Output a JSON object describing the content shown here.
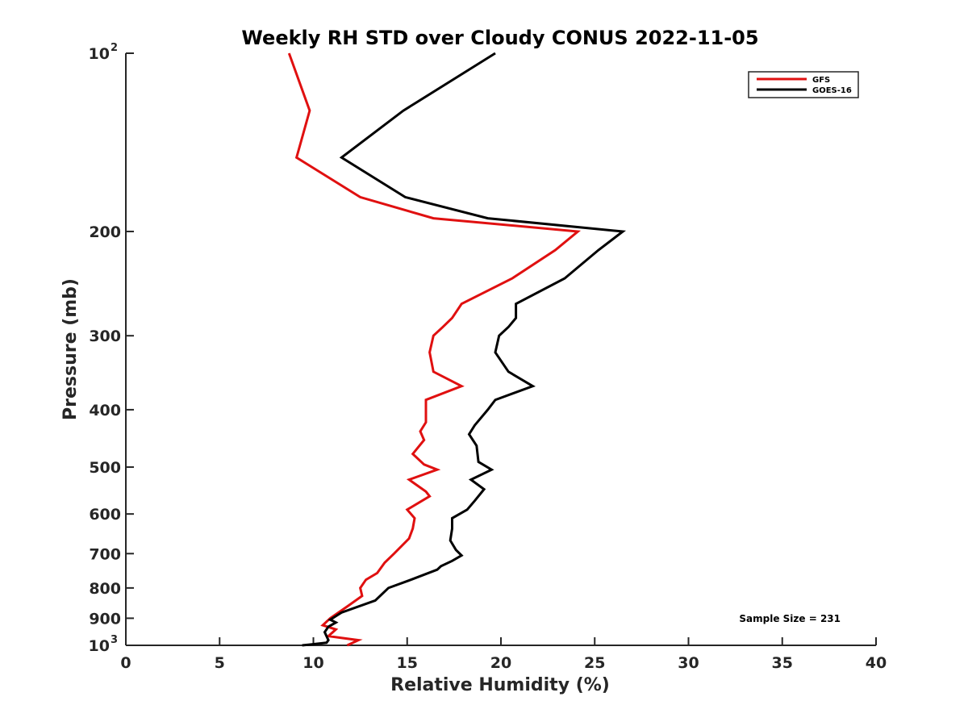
{
  "chart_data": {
    "type": "line",
    "title": "Weekly RH STD over Cloudy CONUS 2022-11-05",
    "xlabel": "Relative Humidity (%)",
    "ylabel": "Pressure (mb)",
    "xlim": [
      0,
      40
    ],
    "ylim": [
      100,
      1000
    ],
    "yscale": "log",
    "y_inverted": true,
    "xticks": [
      0,
      5,
      10,
      15,
      20,
      25,
      30,
      35,
      40
    ],
    "yticks": [
      {
        "value": 100,
        "base": "10",
        "exp": "2"
      },
      {
        "value": 200,
        "label": "200"
      },
      {
        "value": 300,
        "label": "300"
      },
      {
        "value": 400,
        "label": "400"
      },
      {
        "value": 500,
        "label": "500"
      },
      {
        "value": 600,
        "label": "600"
      },
      {
        "value": 700,
        "label": "700"
      },
      {
        "value": 800,
        "label": "800"
      },
      {
        "value": 900,
        "label": "900"
      },
      {
        "value": 1000,
        "base": "10",
        "exp": "3"
      }
    ],
    "legend_position": "top-right",
    "annotation": "Sample Size = 231",
    "series": [
      {
        "name": "GFS",
        "color": "#e01010",
        "points": [
          [
            8.7,
            100
          ],
          [
            9.8,
            125
          ],
          [
            9.1,
            150
          ],
          [
            12.5,
            175
          ],
          [
            16.4,
            190
          ],
          [
            24.1,
            200
          ],
          [
            22.9,
            215
          ],
          [
            20.6,
            240
          ],
          [
            17.9,
            265
          ],
          [
            17.4,
            280
          ],
          [
            16.9,
            290
          ],
          [
            16.4,
            300
          ],
          [
            16.2,
            320
          ],
          [
            16.4,
            345
          ],
          [
            17.9,
            365
          ],
          [
            16.0,
            385
          ],
          [
            16.0,
            420
          ],
          [
            15.7,
            435
          ],
          [
            15.9,
            450
          ],
          [
            15.3,
            475
          ],
          [
            15.9,
            495
          ],
          [
            16.6,
            505
          ],
          [
            15.1,
            525
          ],
          [
            16.0,
            550
          ],
          [
            16.2,
            560
          ],
          [
            15.0,
            590
          ],
          [
            15.4,
            610
          ],
          [
            15.3,
            635
          ],
          [
            15.1,
            660
          ],
          [
            14.3,
            700
          ],
          [
            13.8,
            725
          ],
          [
            13.4,
            755
          ],
          [
            12.8,
            775
          ],
          [
            12.5,
            800
          ],
          [
            12.6,
            825
          ],
          [
            11.8,
            860
          ],
          [
            10.9,
            900
          ],
          [
            10.5,
            925
          ],
          [
            11.2,
            940
          ],
          [
            10.8,
            965
          ],
          [
            12.4,
            980
          ],
          [
            11.8,
            1000
          ]
        ]
      },
      {
        "name": "GOES-16",
        "color": "#000000",
        "points": [
          [
            19.7,
            100
          ],
          [
            14.8,
            125
          ],
          [
            11.5,
            150
          ],
          [
            14.9,
            175
          ],
          [
            19.3,
            190
          ],
          [
            26.5,
            200
          ],
          [
            25.2,
            215
          ],
          [
            23.4,
            240
          ],
          [
            20.8,
            265
          ],
          [
            20.8,
            280
          ],
          [
            20.4,
            290
          ],
          [
            19.9,
            300
          ],
          [
            19.7,
            320
          ],
          [
            20.4,
            345
          ],
          [
            21.7,
            365
          ],
          [
            19.7,
            385
          ],
          [
            19.3,
            400
          ],
          [
            18.6,
            425
          ],
          [
            18.3,
            440
          ],
          [
            18.7,
            460
          ],
          [
            18.8,
            490
          ],
          [
            19.5,
            505
          ],
          [
            18.4,
            525
          ],
          [
            19.1,
            545
          ],
          [
            18.6,
            570
          ],
          [
            18.2,
            590
          ],
          [
            17.4,
            610
          ],
          [
            17.4,
            635
          ],
          [
            17.3,
            665
          ],
          [
            17.6,
            690
          ],
          [
            17.9,
            705
          ],
          [
            17.4,
            720
          ],
          [
            16.8,
            735
          ],
          [
            16.6,
            745
          ],
          [
            15.2,
            775
          ],
          [
            14.0,
            800
          ],
          [
            13.3,
            840
          ],
          [
            11.5,
            880
          ],
          [
            10.9,
            905
          ],
          [
            11.2,
            915
          ],
          [
            10.8,
            930
          ],
          [
            10.6,
            950
          ],
          [
            10.8,
            980
          ],
          [
            10.7,
            990
          ],
          [
            9.4,
            1000
          ]
        ]
      }
    ]
  }
}
